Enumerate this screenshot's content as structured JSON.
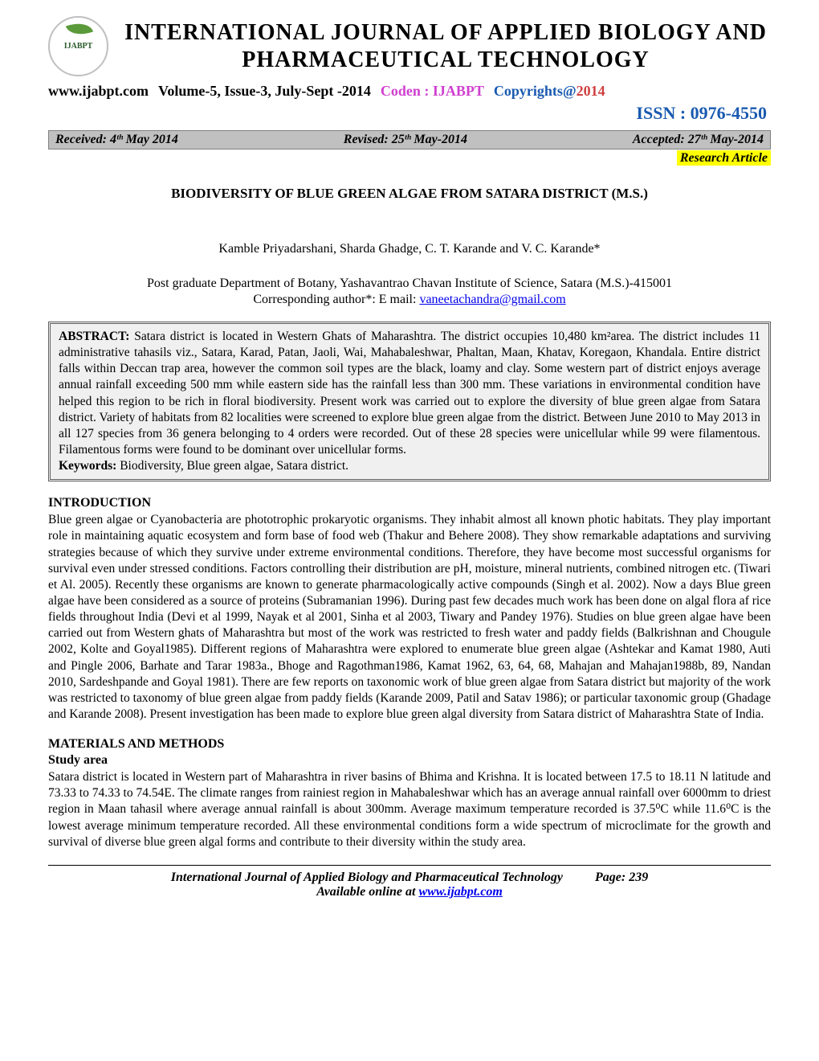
{
  "header": {
    "logo_text": "IJABPT",
    "journal_title": "INTERNATIONAL JOURNAL OF APPLIED BIOLOGY AND PHARMACEUTICAL TECHNOLOGY",
    "website": "www.ijabpt.com",
    "volume_issue": "Volume-5, Issue-3,  July-Sept -2014",
    "coden": "Coden : IJABPT",
    "copyright_label": "Copyrights@",
    "copyright_year": "2014",
    "issn": "ISSN : 0976-4550"
  },
  "dates": {
    "received": "Received: 4ᵗʰ May 2014",
    "revised": "Revised: 25ᵗʰ May-2014",
    "accepted": "Accepted: 27ᵗʰ May-2014"
  },
  "article_type": "Research Article",
  "title": "BIODIVERSITY OF BLUE GREEN ALGAE FROM SATARA DISTRICT (M.S.)",
  "authors": "Kamble Priyadarshani, Sharda Ghadge, C. T. Karande and V. C. Karande*",
  "affiliation": "Post graduate Department of Botany, Yashavantrao Chavan Institute of Science, Satara (M.S.)-415001",
  "corresponding_label": "Corresponding author*: E mail: ",
  "corresponding_email": "vaneetachandra@gmail.com",
  "abstract": {
    "label": "ABSTRACT:",
    "text": " Satara district is located in Western Ghats of Maharashtra. The district occupies 10,480 km²area. The district includes 11 administrative tahasils viz., Satara, Karad, Patan, Jaoli, Wai, Mahabaleshwar, Phaltan, Maan, Khatav, Koregaon, Khandala. Entire district falls within Deccan trap area, however the common soil types are the black, loamy and clay. Some western part of district enjoys average annual rainfall exceeding 500 mm while eastern side has the rainfall less than 300 mm. These variations in environmental condition have helped this region to be rich in floral biodiversity. Present work was carried out to explore the diversity of blue green algae from Satara district. Variety of habitats from 82 localities were screened to explore blue green algae from the district.  Between June 2010 to May 2013 in all 127 species from 36 genera belonging to 4 orders were recorded. Out of these 28 species were unicellular while 99 were filamentous. Filamentous forms were found to be dominant over unicellular forms.",
    "keywords_label": "Keywords:",
    "keywords": " Biodiversity, Blue green algae, Satara district."
  },
  "sections": {
    "introduction": {
      "heading": "INTRODUCTION",
      "text": "Blue green algae or Cyanobacteria are phototrophic prokaryotic organisms. They inhabit almost all known photic habitats. They play important role in maintaining aquatic ecosystem and form base of food web (Thakur and Behere 2008). They show remarkable adaptations and surviving strategies because of which they survive under extreme environmental conditions. Therefore, they have become most successful organisms for survival even under stressed conditions. Factors controlling their distribution are pH, moisture, mineral nutrients, combined nitrogen etc. (Tiwari et Al. 2005). Recently these organisms are known to generate pharmacologically active compounds (Singh et al. 2002). Now a days Blue green algae have been considered as a source of proteins (Subramanian 1996). During past few decades much work has been done on algal flora af rice fields throughout India (Devi et al 1999, Nayak et al 2001, Sinha et al 2003, Tiwary and Pandey 1976). Studies on blue green algae have been carried out from Western ghats of Maharashtra but most of the work was restricted to fresh water and paddy fields (Balkrishnan and Chougule 2002, Kolte and Goyal1985). Different regions of Maharashtra were explored to enumerate blue green algae (Ashtekar and Kamat 1980, Auti and Pingle 2006, Barhate and Tarar 1983a., Bhoge and Ragothman1986, Kamat 1962, 63, 64, 68, Mahajan and Mahajan1988b, 89, Nandan 2010, Sardeshpande and Goyal 1981). There are few reports on taxonomic work of blue green algae from Satara district but majority of the work was restricted to taxonomy of blue green algae from paddy fields (Karande 2009, Patil and Satav 1986); or particular taxonomic group (Ghadage and Karande 2008). Present investigation has been made to explore blue green algal diversity from Satara district of Maharashtra State of India."
    },
    "materials": {
      "heading": "MATERIALS AND METHODS",
      "subheading": "Study area",
      "text": "Satara district is located in Western part of Maharashtra in river basins of Bhima and Krishna. It is located between 17.5 to 18.11 N latitude and 73.33 to 74.33 to 74.54E. The climate ranges from rainiest region in Mahabaleshwar which has an average annual rainfall over 6000mm to driest region in Maan tahasil where average annual rainfall is about 300mm. Average maximum temperature recorded is 37.5⁰C while 11.6⁰C is the lowest average minimum temperature recorded. All these environmental conditions form a wide spectrum of microclimate for the growth and survival of diverse blue green algal forms and contribute to their diversity within the study area."
    }
  },
  "footer": {
    "journal": "International Journal of Applied Biology and Pharmaceutical Technology",
    "page": "Page: 239",
    "online_label": "Available online at ",
    "online_url": "www.ijabpt.com"
  }
}
